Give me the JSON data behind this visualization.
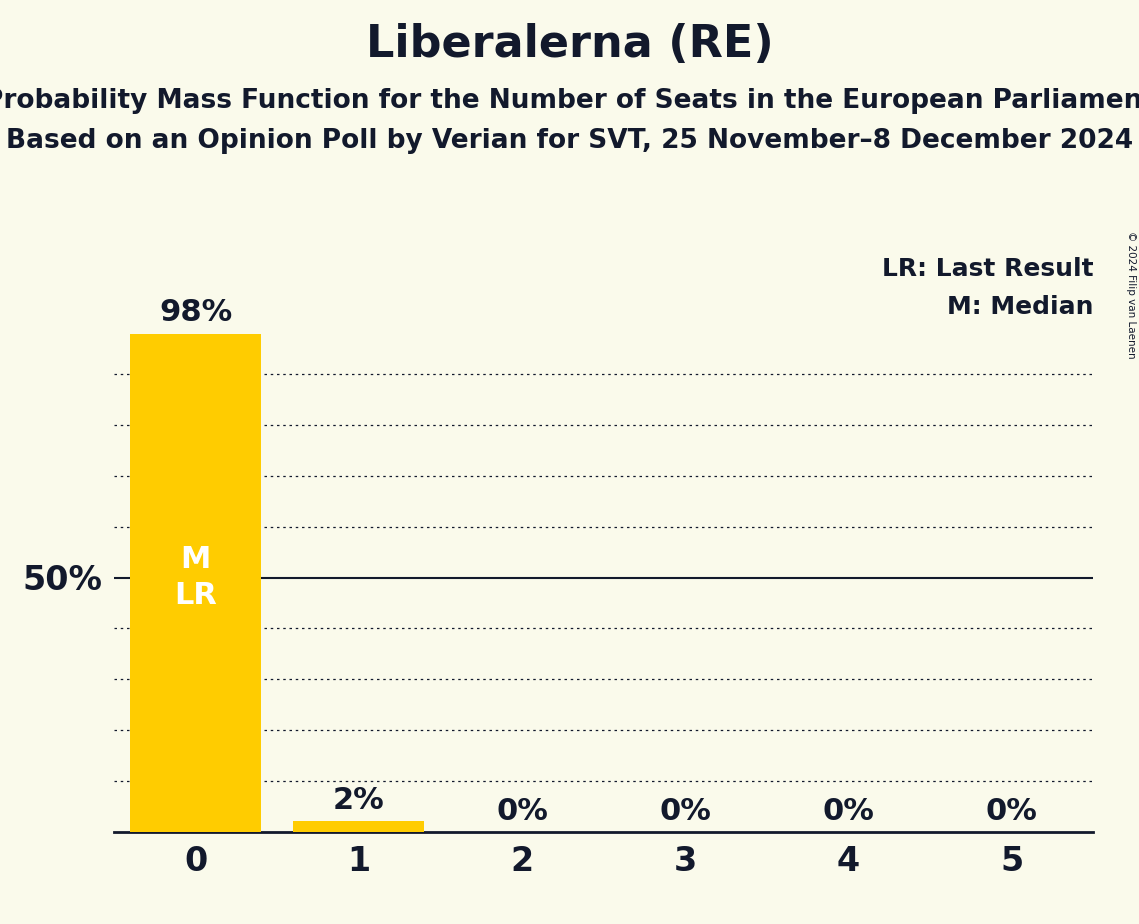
{
  "title": "Liberalerna (RE)",
  "subtitle1": "Probability Mass Function for the Number of Seats in the European Parliament",
  "subtitle2": "Based on an Opinion Poll by Verian for SVT, 25 November–8 December 2024",
  "copyright": "© 2024 Filip van Laenen",
  "categories": [
    0,
    1,
    2,
    3,
    4,
    5
  ],
  "values": [
    0.98,
    0.02,
    0.0,
    0.0,
    0.0,
    0.0
  ],
  "bar_color": "#FFCC00",
  "background_color": "#FAFAEB",
  "text_color": "#12192C",
  "bar_text_color": "#FFFFFF",
  "median": 0,
  "last_result": 0,
  "ylim": [
    0,
    1.0
  ],
  "yticks_dotted": [
    0.1,
    0.2,
    0.3,
    0.4,
    0.6,
    0.7,
    0.8,
    0.9
  ],
  "ytick_solid": 0.5,
  "legend_lr": "LR: Last Result",
  "legend_m": "M: Median",
  "title_fontsize": 32,
  "subtitle_fontsize": 19,
  "bar_label_fontsize": 22,
  "axis_tick_fontsize": 24,
  "ylabel_fontsize": 24,
  "inner_label_fontsize": 22,
  "legend_fontsize": 18
}
